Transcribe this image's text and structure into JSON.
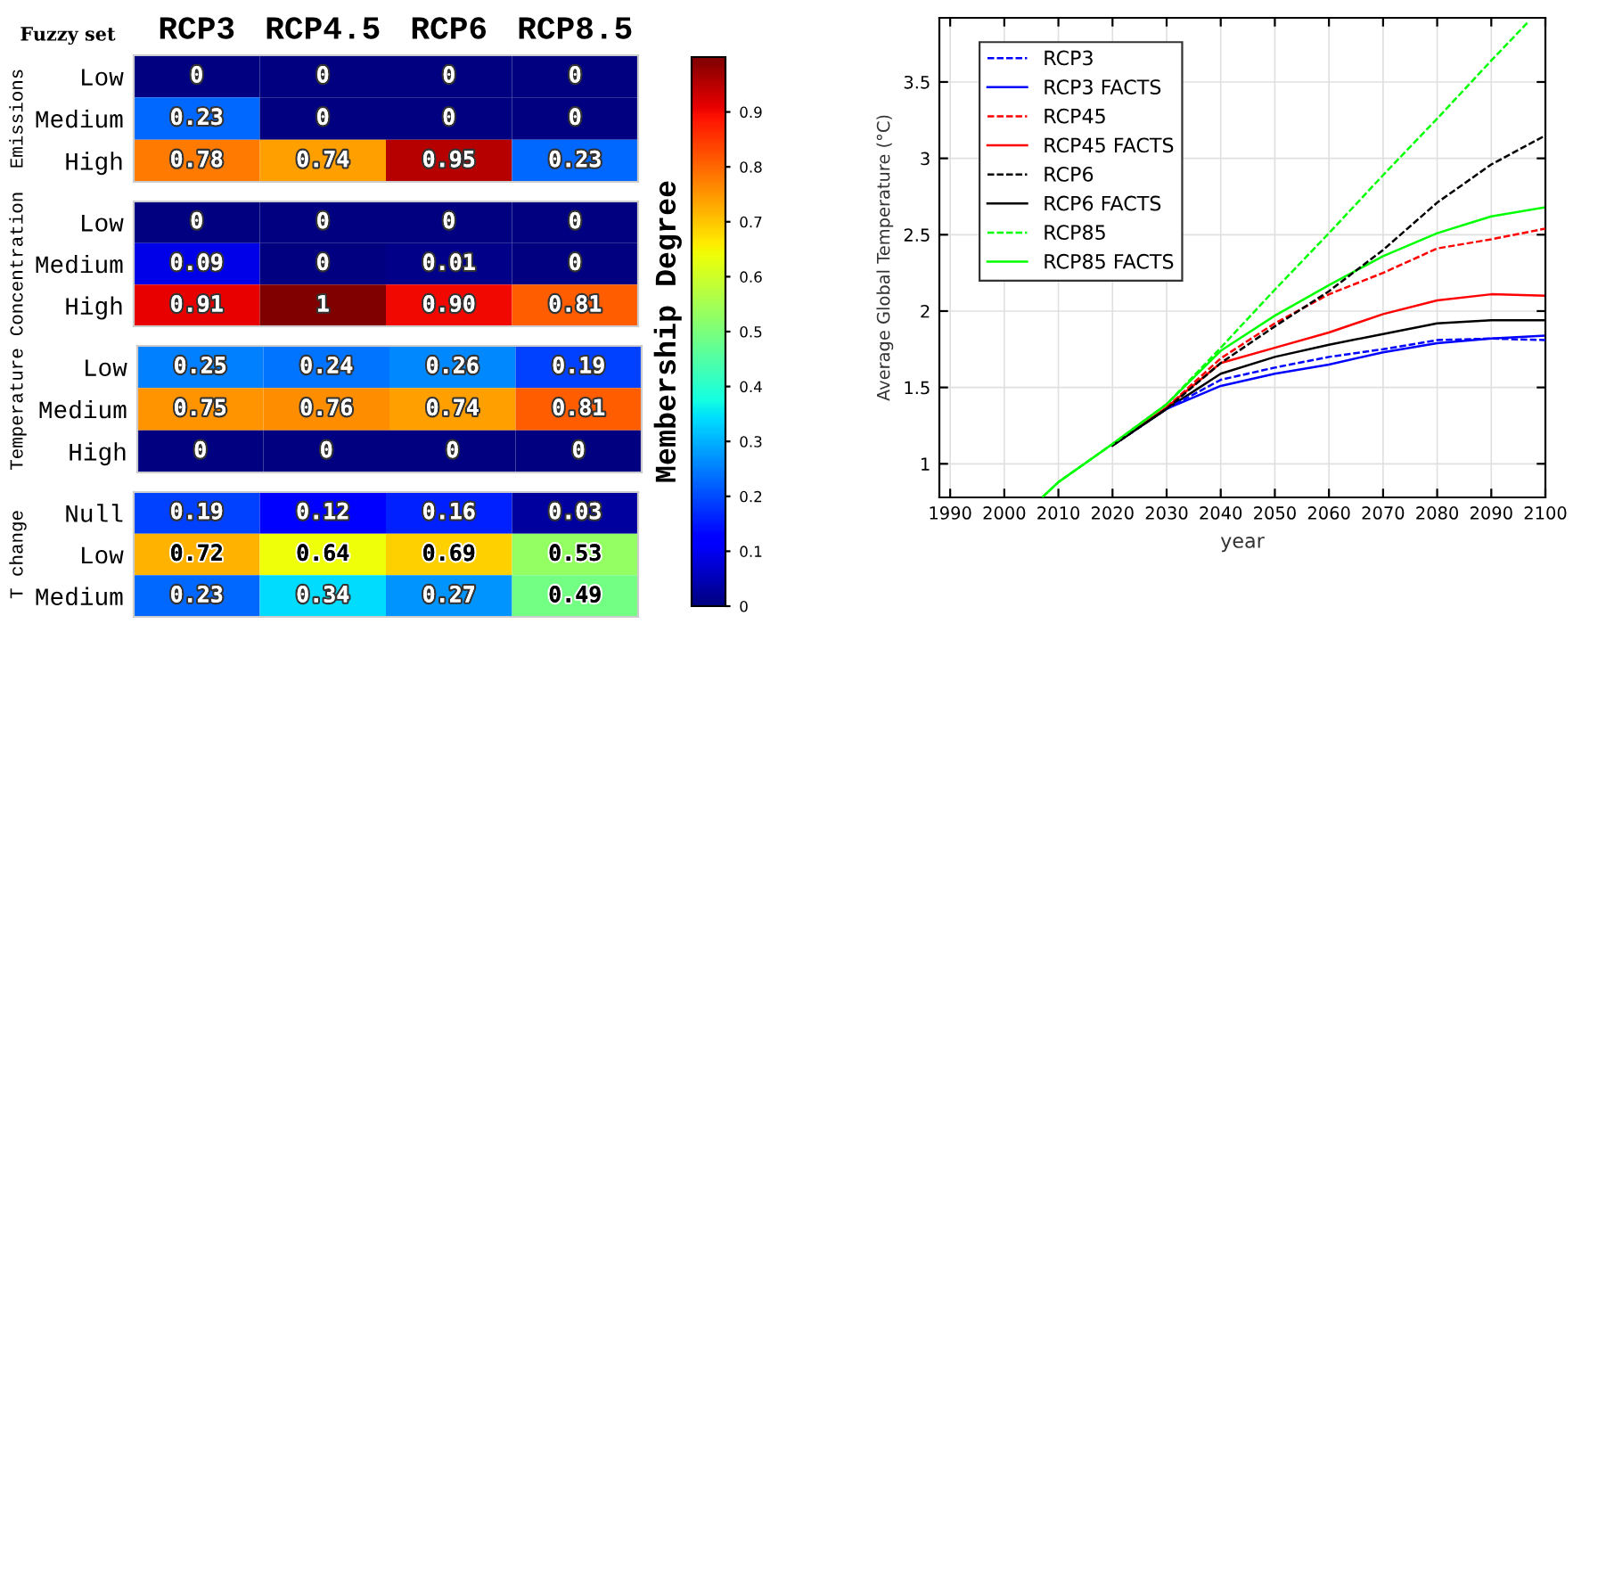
{
  "chart_data": [
    {
      "type": "heatmap",
      "annotations": [
        "Fuzzy set"
      ],
      "ylabel": "Emissions",
      "categories": [
        "RCP3",
        "RCP4.5",
        "RCP6",
        "RCP8.5"
      ],
      "y_categories": [
        "Low",
        "Medium",
        "High"
      ],
      "cells": [
        [
          0,
          0,
          0,
          0
        ],
        [
          0.23,
          0,
          0,
          0
        ],
        [
          0.78,
          0.74,
          0.95,
          0.23
        ]
      ],
      "cell_labels": [
        [
          "0",
          "0",
          "0",
          "0"
        ],
        [
          "0.23",
          "0",
          "0",
          "0"
        ],
        [
          "0.78",
          "0.74",
          "0.95",
          "0.23"
        ]
      ],
      "clim": [
        0,
        1
      ],
      "cticks": [
        0,
        0.1,
        0.2,
        0.3,
        0.4,
        0.5,
        0.6,
        0.7,
        0.8,
        0.9
      ],
      "clabel": "Membership Degree"
    },
    {
      "type": "heatmap",
      "ylabel": "Concentration",
      "categories": [
        null,
        null,
        null,
        null
      ],
      "y_categories": [
        "Low",
        "Medium",
        "High"
      ],
      "cells": [
        [
          0,
          0,
          0,
          0
        ],
        [
          0.09,
          0,
          0.01,
          0
        ],
        [
          0.91,
          1,
          0.9,
          0.81
        ]
      ],
      "cell_labels": [
        [
          "0",
          "0",
          "0",
          "0"
        ],
        [
          "0.09",
          "0",
          "0.01",
          "0"
        ],
        [
          "0.91",
          "1",
          "0.90",
          "0.81"
        ]
      ]
    },
    {
      "type": "heatmap",
      "ylabel": "Temperature",
      "categories": [
        null,
        null,
        null,
        null
      ],
      "y_categories": [
        "Low",
        "Medium",
        "High"
      ],
      "cells": [
        [
          0.25,
          0.24,
          0.26,
          0.19
        ],
        [
          0.75,
          0.76,
          0.74,
          0.81
        ],
        [
          0,
          0,
          0,
          0
        ]
      ],
      "cell_labels": [
        [
          "0.25",
          "0.24",
          "0.26",
          "0.19"
        ],
        [
          "0.75",
          "0.76",
          "0.74",
          "0.81"
        ],
        [
          "0",
          "0",
          "0",
          "0"
        ]
      ]
    },
    {
      "type": "heatmap",
      "ylabel": "T change",
      "categories": [
        null,
        null,
        null,
        null
      ],
      "y_categories": [
        "Null",
        "Low",
        "Medium"
      ],
      "cells": [
        [
          0.19,
          0.12,
          0.16,
          0.03
        ],
        [
          0.72,
          0.64,
          0.69,
          0.53
        ],
        [
          0.23,
          0.34,
          0.27,
          0.49
        ]
      ],
      "cell_labels": [
        [
          "0.19",
          "0.12",
          "0.16",
          "0.03"
        ],
        [
          "0.72",
          "0.64",
          "0.69",
          "0.53"
        ],
        [
          "0.23",
          "0.34",
          "0.27",
          "0.49"
        ]
      ]
    },
    {
      "type": "line",
      "xlabel": "year",
      "ylabel": "Average Global Temperature (°C)",
      "x": [
        2007,
        2010,
        2020,
        2030,
        2040,
        2050,
        2060,
        2070,
        2080,
        2090,
        2100
      ],
      "xlim": [
        1988,
        2100
      ],
      "ylim": [
        0.78,
        3.92
      ],
      "xticks": [
        1990,
        2000,
        2010,
        2020,
        2030,
        2040,
        2050,
        2060,
        2070,
        2080,
        2090,
        2100
      ],
      "yticks": [
        1,
        1.5,
        2,
        2.5,
        3,
        3.5
      ],
      "grid": true,
      "legend": "top left",
      "series": [
        {
          "name": "RCP3",
          "color": "#0000ff",
          "line_style": "dashed",
          "values": [
            null,
            null,
            null,
            1.36,
            1.55,
            1.63,
            1.7,
            1.75,
            1.81,
            1.82,
            1.81
          ]
        },
        {
          "name": "RCP3 FACTS",
          "color": "#0000ff",
          "line_style": "solid",
          "values": [
            null,
            null,
            1.12,
            1.36,
            1.51,
            1.59,
            1.65,
            1.73,
            1.79,
            1.82,
            1.84
          ]
        },
        {
          "name": "RCP45",
          "color": "#ff0000",
          "line_style": "dashed",
          "values": [
            null,
            null,
            null,
            1.37,
            1.69,
            1.92,
            2.11,
            2.25,
            2.41,
            2.47,
            2.54
          ]
        },
        {
          "name": "RCP45 FACTS",
          "color": "#ff0000",
          "line_style": "solid",
          "values": [
            null,
            null,
            1.12,
            1.37,
            1.66,
            1.76,
            1.86,
            1.98,
            2.07,
            2.11,
            2.1
          ]
        },
        {
          "name": "RCP6",
          "color": "#000000",
          "line_style": "dashed",
          "values": [
            null,
            null,
            1.12,
            1.36,
            1.66,
            1.9,
            2.13,
            2.4,
            2.71,
            2.96,
            3.15
          ]
        },
        {
          "name": "RCP6 FACTS",
          "color": "#000000",
          "line_style": "solid",
          "values": [
            null,
            null,
            1.12,
            1.36,
            1.59,
            1.7,
            1.78,
            1.85,
            1.92,
            1.94,
            1.94
          ]
        },
        {
          "name": "RCP85",
          "color": "#00ff00",
          "line_style": "dashed",
          "x": [
            2007,
            2010,
            2020,
            2030,
            2040,
            2050,
            2060,
            2070,
            2080,
            2090,
            2097
          ],
          "values": [
            0.78,
            0.88,
            1.13,
            1.39,
            1.76,
            2.14,
            2.51,
            2.89,
            3.26,
            3.64,
            3.9
          ]
        },
        {
          "name": "RCP85 FACTS",
          "color": "#00ff00",
          "line_style": "solid",
          "values": [
            0.78,
            0.88,
            1.13,
            1.39,
            1.74,
            1.97,
            2.17,
            2.36,
            2.51,
            2.62,
            2.68
          ]
        }
      ]
    }
  ]
}
